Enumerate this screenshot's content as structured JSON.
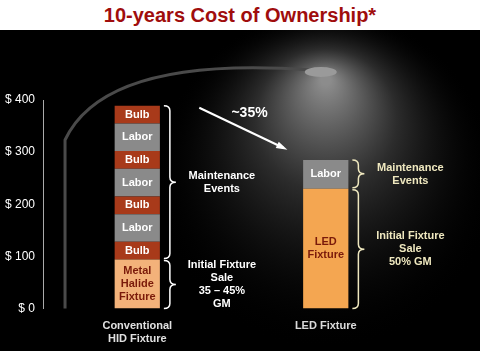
{
  "chart_data": {
    "type": "bar",
    "title": "10-years Cost of Ownership*",
    "categories": [
      "Conventional HID Fixture",
      "LED Fixture"
    ],
    "stacked": true,
    "grid": false,
    "ylim": [
      0,
      400
    ],
    "yticks": [
      {
        "value": 0,
        "label": "$ 0"
      },
      {
        "value": 100,
        "label": "$ 100"
      },
      {
        "value": 200,
        "label": "$ 200"
      },
      {
        "value": 300,
        "label": "$ 300"
      },
      {
        "value": 400,
        "label": "$ 400"
      }
    ],
    "series": [
      {
        "name": "Metal Halide Fixture",
        "color": "#f3b27a",
        "values": [
          94,
          null
        ]
      },
      {
        "name": "LED Fixture",
        "color": "#f4a651",
        "values": [
          null,
          230
        ]
      },
      {
        "name": "Bulb",
        "color": "#a83a1a",
        "values": [
          34,
          null
        ]
      },
      {
        "name": "Labor",
        "color": "#8a8a8a",
        "values": [
          53,
          55
        ]
      },
      {
        "name": "Bulb",
        "color": "#a83a1a",
        "values": [
          34,
          null
        ]
      },
      {
        "name": "Labor",
        "color": "#8a8a8a",
        "values": [
          53,
          null
        ]
      },
      {
        "name": "Bulb",
        "color": "#a83a1a",
        "values": [
          34,
          null
        ]
      },
      {
        "name": "Labor",
        "color": "#8a8a8a",
        "values": [
          53,
          null
        ]
      },
      {
        "name": "Bulb",
        "color": "#a83a1a",
        "values": [
          34,
          null
        ]
      }
    ],
    "annotations": {
      "arrow_label": "~35%",
      "braces": [
        {
          "fixture": [
            "Initial Fixture",
            "Sale",
            "35 – 45%",
            "GM"
          ],
          "maintenance": [
            "Maintenance",
            "Events"
          ]
        },
        {
          "fixture": [
            "Initial Fixture",
            "Sale",
            "50% GM"
          ],
          "maintenance": [
            "Maintenance",
            "Events"
          ]
        }
      ]
    }
  }
}
